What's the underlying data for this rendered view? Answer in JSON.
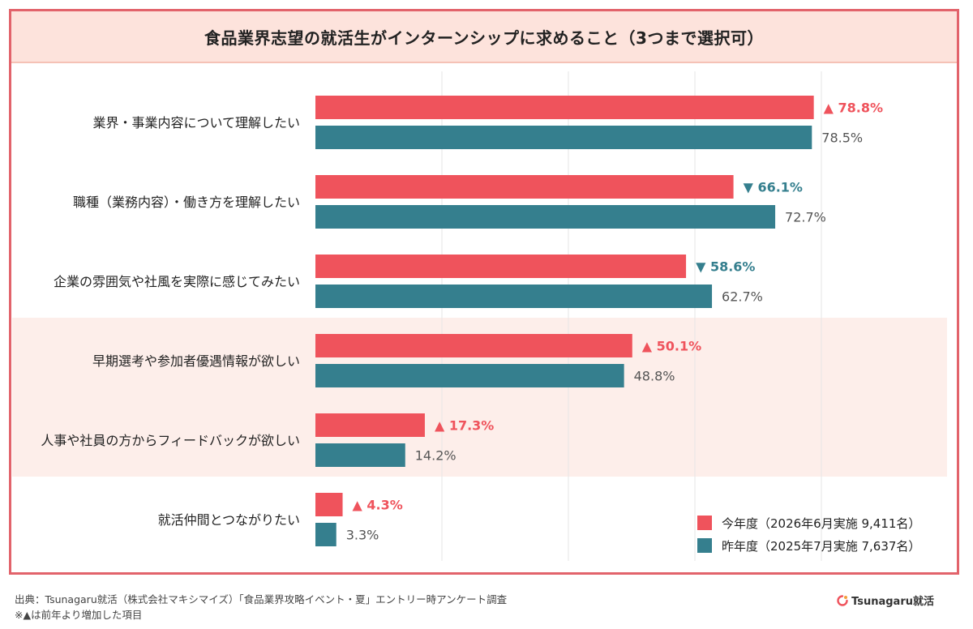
{
  "title": "食品業界志望の就活生がインターンシップに求めること（3つまで選択可）",
  "colors": {
    "current": "#ef535c",
    "previous": "#357f8e",
    "up": "#ef535c",
    "down": "#357f8e",
    "highlight": "#fdeeea"
  },
  "chart_data": {
    "type": "bar",
    "orientation": "horizontal",
    "categories": [
      "業界・事業内容について理解したい",
      "職種（業務内容）・働き方を理解したい",
      "企業の雰囲気や社風を実際に感じてみたい",
      "早期選考や参加者優遇情報が欲しい",
      "人事や社員の方からフィードバックが欲しい",
      "就活仲間とつながりたい"
    ],
    "series": [
      {
        "name": "今年度（2026年6月実施 9,411名）",
        "values": [
          78.8,
          66.1,
          58.6,
          50.1,
          17.3,
          4.3
        ],
        "labels": [
          "▲ 78.8%",
          "▼ 66.1%",
          "▼ 58.6%",
          "▲ 50.1%",
          "▲ 17.3%",
          "▲ 4.3%"
        ],
        "trend": [
          "up",
          "down",
          "down",
          "up",
          "up",
          "up"
        ]
      },
      {
        "name": "昨年度（2025年7月実施 7,637名）",
        "values": [
          78.5,
          72.7,
          62.7,
          48.8,
          14.2,
          3.3
        ],
        "labels": [
          "78.5%",
          "72.7%",
          "62.7%",
          "48.8%",
          "14.2%",
          "3.3%"
        ]
      }
    ],
    "xlim": [
      0,
      100
    ],
    "grid": true,
    "highlighted_categories": [
      3,
      4
    ],
    "legend_position": "bottom-right"
  },
  "footer": {
    "source": "出典：Tsunagaru就活（株式会社マキシマイズ）「食品業界攻略イベント・夏」エントリー時アンケート調査",
    "note": "※▲は前年より増加した項目"
  },
  "brand": {
    "name": "Tsunagaru就活",
    "icon": "brand-logo-icon"
  }
}
